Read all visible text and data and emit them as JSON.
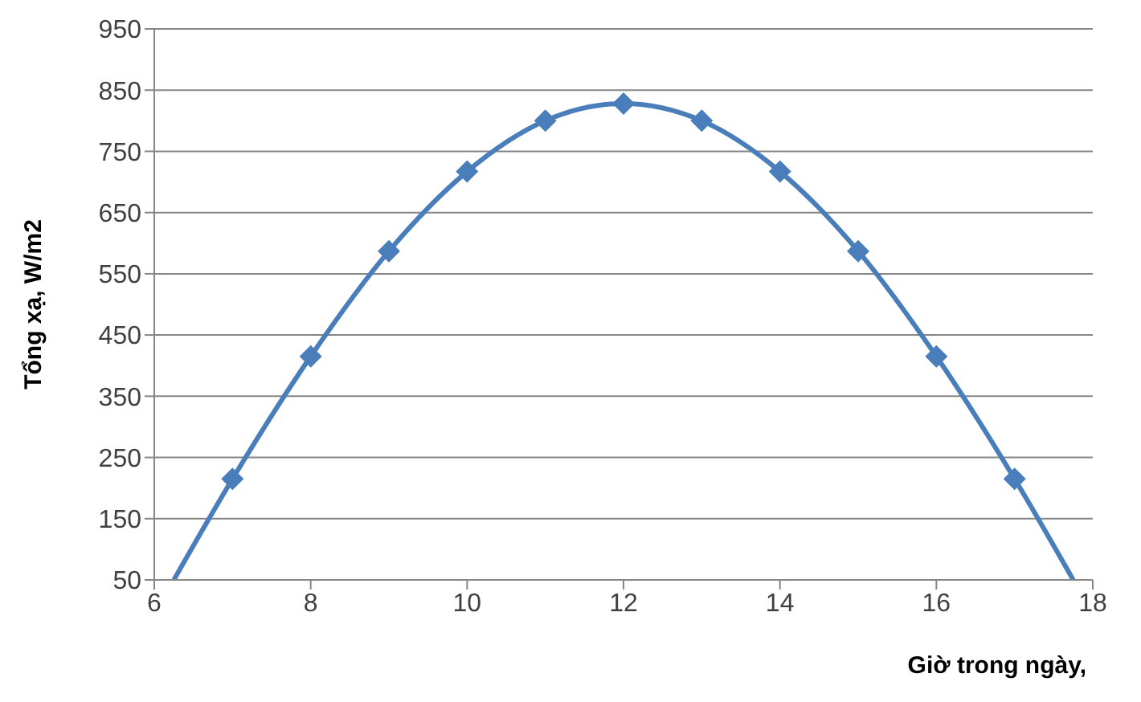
{
  "chart_data": {
    "type": "line",
    "xlabel": "Giờ trong ngày,",
    "ylabel": "Tổng xạ, W/m2",
    "xlim": [
      6,
      18
    ],
    "xticks": [
      6,
      8,
      10,
      12,
      14,
      16,
      18
    ],
    "ylim": [
      50,
      950
    ],
    "yticks": [
      50,
      150,
      250,
      350,
      450,
      550,
      650,
      750,
      850,
      950
    ],
    "grid": "y",
    "series": [
      {
        "marker": "none",
        "color": "#4a7ebb",
        "x": [
          6.25,
          7,
          8,
          9,
          10,
          11,
          12,
          13,
          14,
          15,
          16,
          17,
          17.75
        ],
        "values": [
          50,
          215,
          415,
          587,
          717,
          800,
          828,
          800,
          717,
          587,
          415,
          215,
          50
        ]
      },
      {
        "type": "scatter",
        "marker": "diamond",
        "color": "#4a7ebb",
        "x": [
          7,
          8,
          9,
          10,
          11,
          12,
          13,
          14,
          15,
          16,
          17
        ],
        "values": [
          215,
          415,
          587,
          717,
          800,
          828,
          800,
          717,
          587,
          415,
          215
        ]
      }
    ]
  }
}
